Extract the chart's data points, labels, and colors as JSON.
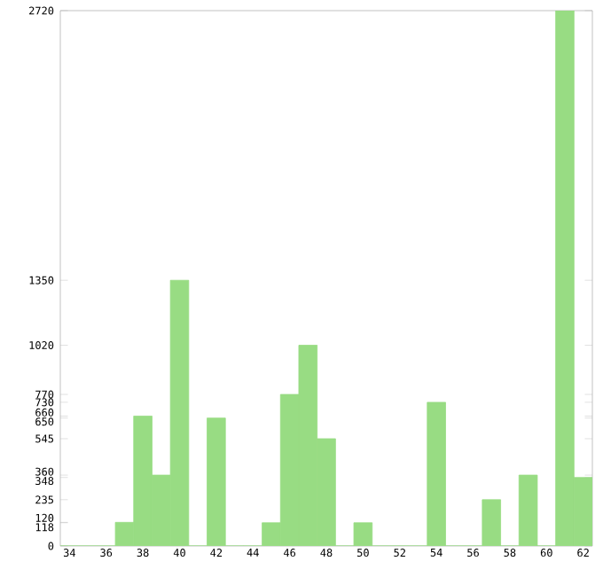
{
  "chart_data": {
    "type": "bar",
    "categories": [
      "34",
      null,
      "36",
      null,
      "38",
      null,
      "40",
      null,
      "42",
      null,
      "44",
      null,
      "46",
      null,
      "48",
      null,
      "50",
      null,
      "52",
      null,
      "54",
      null,
      "56",
      null,
      "58",
      null,
      "60",
      null,
      "62"
    ],
    "values": [
      0,
      0,
      0,
      120,
      660,
      360,
      1350,
      0,
      650,
      0,
      0,
      118,
      770,
      1020,
      545,
      0,
      118,
      0,
      0,
      0,
      730,
      0,
      0,
      235,
      0,
      360,
      0,
      2720,
      348
    ],
    "color": "#98dc83",
    "ylim": [
      0,
      2720
    ],
    "yticks": [
      0,
      118,
      120,
      235,
      348,
      360,
      545,
      650,
      660,
      730,
      770,
      1020,
      1350,
      2720
    ],
    "grid": false
  }
}
